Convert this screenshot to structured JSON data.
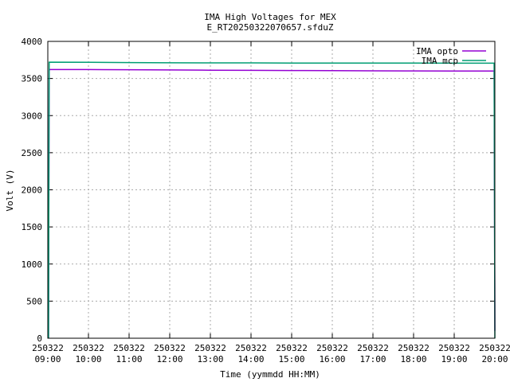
{
  "chart_data": {
    "type": "line",
    "title": "IMA High Voltages for MEX",
    "subtitle": "E_RT20250322070657.sfduZ",
    "xlabel": "Time (yymmdd HH:MM)",
    "ylabel": "Volt (V)",
    "xlim": [
      "250322 09:00",
      "250322 20:00"
    ],
    "ylim": [
      0,
      4000
    ],
    "grid": true,
    "legend_position": "top-right",
    "x_ticks": [
      {
        "date": "250322",
        "time": "09:00"
      },
      {
        "date": "250322",
        "time": "10:00"
      },
      {
        "date": "250322",
        "time": "11:00"
      },
      {
        "date": "250322",
        "time": "12:00"
      },
      {
        "date": "250322",
        "time": "13:00"
      },
      {
        "date": "250322",
        "time": "14:00"
      },
      {
        "date": "250322",
        "time": "15:00"
      },
      {
        "date": "250322",
        "time": "16:00"
      },
      {
        "date": "250322",
        "time": "17:00"
      },
      {
        "date": "250322",
        "time": "18:00"
      },
      {
        "date": "250322",
        "time": "19:00"
      },
      {
        "date": "250322",
        "time": "20:00"
      }
    ],
    "y_ticks": [
      "0",
      "500",
      "1000",
      "1500",
      "2000",
      "2500",
      "3000",
      "3500",
      "4000"
    ],
    "series": [
      {
        "name": "IMA opto",
        "color": "#9400d3",
        "points": [
          [
            "250322 09:01",
            0
          ],
          [
            "250322 09:01",
            200
          ],
          [
            "250322 09:02",
            3610
          ],
          [
            "250322 09:03",
            3620
          ],
          [
            "250322 10:00",
            3620
          ],
          [
            "250322 11:00",
            3618
          ],
          [
            "250322 12:00",
            3615
          ],
          [
            "250322 13:00",
            3612
          ],
          [
            "250322 14:00",
            3610
          ],
          [
            "250322 15:00",
            3608
          ],
          [
            "250322 16:00",
            3605
          ],
          [
            "250322 17:00",
            3603
          ],
          [
            "250322 18:00",
            3602
          ],
          [
            "250322 19:00",
            3600
          ],
          [
            "250322 19:59",
            3600
          ],
          [
            "250322 20:00",
            100
          ]
        ]
      },
      {
        "name": "IMA mcp",
        "color": "#009e73",
        "points": [
          [
            "250322 09:01",
            0
          ],
          [
            "250322 09:02",
            3720
          ],
          [
            "250322 10:00",
            3718
          ],
          [
            "250322 11:00",
            3715
          ],
          [
            "250322 12:00",
            3712
          ],
          [
            "250322 13:00",
            3710
          ],
          [
            "250322 14:00",
            3710
          ],
          [
            "250322 15:00",
            3708
          ],
          [
            "250322 16:00",
            3708
          ],
          [
            "250322 17:00",
            3707
          ],
          [
            "250322 18:00",
            3707
          ],
          [
            "250322 19:00",
            3706
          ],
          [
            "250322 19:59",
            3706
          ],
          [
            "250322 20:00",
            0
          ]
        ]
      }
    ]
  }
}
